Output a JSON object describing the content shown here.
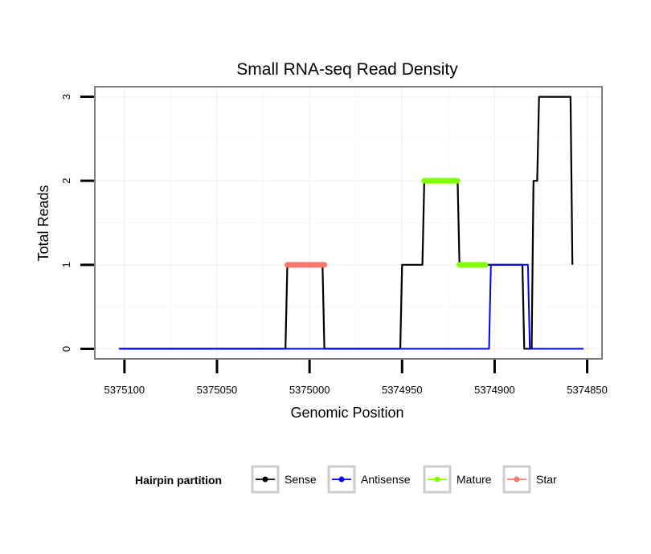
{
  "chart_data": {
    "type": "line",
    "title": "Small RNA-seq Read Density",
    "xlabel": "Genomic Position",
    "ylabel": "Total Reads",
    "x_reversed": true,
    "xlim": [
      5375116,
      5374842
    ],
    "ylim": [
      -0.12,
      3.12
    ],
    "x_ticks": [
      5375100,
      5375050,
      5375000,
      5374950,
      5374900,
      5374850
    ],
    "x_tick_labels": [
      "5375100",
      "5375050",
      "5375000",
      "5374950",
      "5374900",
      "5374850"
    ],
    "y_ticks": [
      0,
      1,
      2,
      3
    ],
    "y_tick_labels": [
      "0",
      "1",
      "2",
      "3"
    ],
    "grid": true,
    "legend": {
      "title": "Hairpin partition",
      "position": "bottom",
      "entries": [
        "Sense",
        "Antisense",
        "Mature",
        "Star"
      ]
    },
    "series": [
      {
        "name": "Sense",
        "color": "#000000",
        "width": 2.2,
        "points": [
          [
            5375103,
            0
          ],
          [
            5375013,
            0
          ],
          [
            5375012,
            1
          ],
          [
            5374993,
            1
          ],
          [
            5374992,
            0
          ],
          [
            5374951,
            0
          ],
          [
            5374950,
            1
          ],
          [
            5374939,
            1
          ],
          [
            5374938,
            2
          ],
          [
            5374920,
            2
          ],
          [
            5374919,
            1
          ],
          [
            5374885,
            1
          ],
          [
            5374884,
            0
          ],
          [
            5374880,
            0
          ],
          [
            5374879,
            2
          ],
          [
            5374877,
            2
          ],
          [
            5374876,
            3
          ],
          [
            5374859,
            3
          ],
          [
            5374858,
            1
          ]
        ]
      },
      {
        "name": "Antisense",
        "color": "#0000ff",
        "width": 2.0,
        "points": [
          [
            5375103,
            0
          ],
          [
            5374903,
            0
          ],
          [
            5374902,
            1
          ],
          [
            5374882,
            1
          ],
          [
            5374881,
            0
          ],
          [
            5374852,
            0
          ]
        ]
      },
      {
        "name": "Mature",
        "color": "#7fff00",
        "width": 7,
        "segments": [
          [
            [
              5374938,
              2
            ],
            [
              5374920,
              2
            ]
          ],
          [
            [
              5374919,
              1
            ],
            [
              5374905,
              1
            ]
          ]
        ]
      },
      {
        "name": "Star",
        "color": "#f8766d",
        "width": 7,
        "segments": [
          [
            [
              5375012,
              1
            ],
            [
              5374992,
              1
            ]
          ]
        ]
      }
    ]
  }
}
